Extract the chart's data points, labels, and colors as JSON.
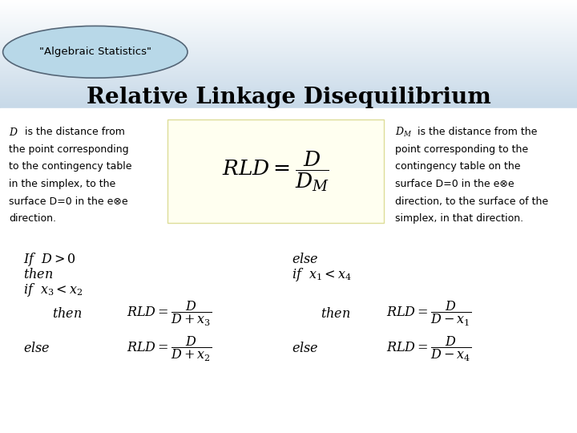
{
  "title": "Relative Linkage Disequilibrium",
  "badge_text": "\"Algebraic Statistics\"",
  "bg_gradient_top": "#c5d8e8",
  "bg_gradient_bottom": "#ffffff",
  "badge_fill": "#b8d8e8",
  "formula_box_color": "#fffff0",
  "left_text_line1": "D is the distance from",
  "left_text_line2": "the point corresponding",
  "left_text_line3": "to the contingency table",
  "left_text_line4": "in the simplex, to the",
  "left_text_line5": "surface D=0 in the e⊗e",
  "left_text_line6": "direction.",
  "right_text_line1": "is the distance from the",
  "right_text_line2": "point corresponding to the",
  "right_text_line3": "contingency table on the",
  "right_text_line4": "surface D=0 in the e⊗e",
  "right_text_line5": "direction, to the surface of the",
  "right_text_line6": "simplex, in that direction."
}
